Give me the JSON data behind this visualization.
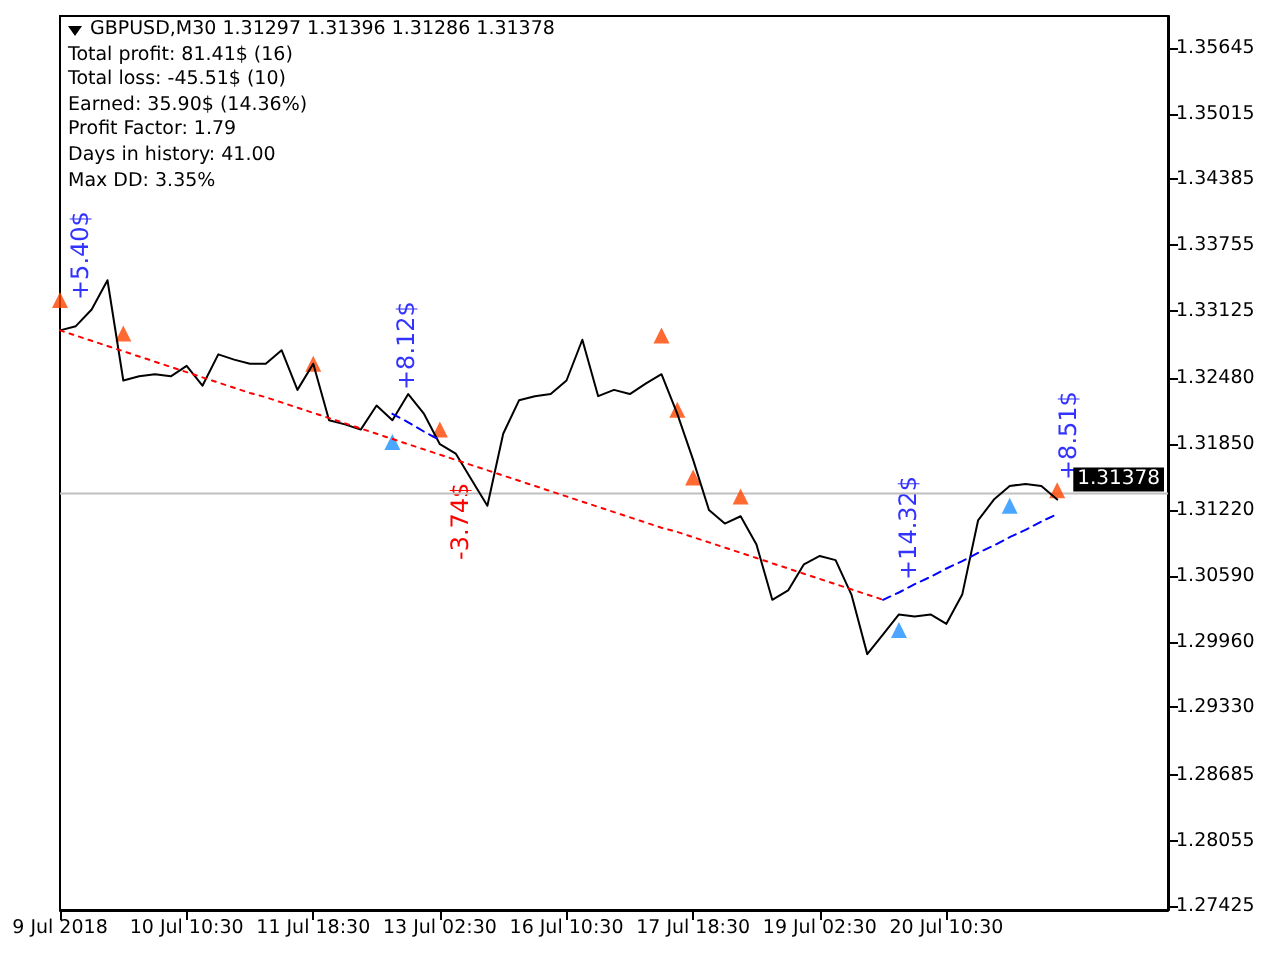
{
  "chart_data": {
    "type": "line",
    "title": "GBPUSD,M30  1.31297 1.31396 1.31286 1.31378",
    "annotations": [
      "Total profit: 81.41$ (16)",
      "Total loss: -45.51$ (10)",
      "Earned: 35.90$ (14.36%)",
      "Profit Factor: 1.79",
      "Days in history: 41.00",
      "Max DD: 3.35%",
      "+5.40$",
      "+8.12$",
      "-3.74$",
      "+14.32$",
      "+8.51$"
    ],
    "categories": [
      "9 Jul 2018",
      null,
      null,
      null,
      null,
      null,
      null,
      null,
      "10 Jul 10:30",
      null,
      null,
      null,
      null,
      null,
      null,
      null,
      "11 Jul 18:30",
      null,
      null,
      null,
      null,
      null,
      null,
      null,
      "13 Jul 02:30",
      null,
      null,
      null,
      null,
      null,
      null,
      null,
      "16 Jul 10:30",
      null,
      null,
      null,
      null,
      null,
      null,
      null,
      "17 Jul 18:30",
      null,
      null,
      null,
      null,
      null,
      null,
      null,
      "19 Jul 02:30",
      null,
      null,
      null,
      null,
      null,
      null,
      null,
      "20 Jul 10:30",
      null,
      null,
      null,
      null,
      null,
      null,
      null,
      null,
      null,
      null,
      null,
      null,
      null,
      null
    ],
    "ylim": [
      1.2739,
      1.3595
    ],
    "yticks": [
      1.35645,
      1.35015,
      1.34385,
      1.33755,
      1.33125,
      {
        "value": 1.3248,
        "label": "1.32480"
      },
      {
        "value": 1.3185,
        "label": "1.31850"
      },
      {
        "value": 1.3122,
        "label": "1.31220"
      },
      {
        "value": 1.3059,
        "label": "1.30590"
      },
      {
        "value": 1.2996,
        "label": "1.29960"
      },
      {
        "value": 1.2933,
        "label": "1.29330"
      },
      1.28685,
      1.28055,
      1.27425
    ],
    "ref_lines": [
      {
        "axis": "y",
        "value": 1.31378,
        "label": "1.31378",
        "color": "#c0c0c0"
      }
    ],
    "series": [
      {
        "color": "#000000",
        "marker": "none",
        "line_style": "solid",
        "values": [
          1.3294,
          1.3298,
          1.3314,
          1.3342,
          1.3246,
          1.325,
          1.3252,
          1.325,
          1.326,
          1.3241,
          1.3271,
          1.3266,
          1.3262,
          1.3262,
          1.3275,
          1.3237,
          1.3262,
          1.3208,
          1.3204,
          1.3199,
          1.3222,
          1.3208,
          1.3233,
          1.3214,
          1.3185,
          1.3176,
          1.3151,
          1.3126,
          1.3195,
          1.3227,
          1.3231,
          1.3233,
          1.3246,
          1.3285,
          1.3231,
          1.3237,
          1.3233,
          1.3243,
          1.3252,
          1.3214,
          1.317,
          1.3122,
          1.3109,
          1.3116,
          1.3089,
          1.3036,
          1.3045,
          1.307,
          1.3078,
          1.3074,
          1.3041,
          1.2984,
          1.3003,
          1.3022,
          1.302,
          1.3022,
          1.3013,
          1.3041,
          1.3112,
          1.3132,
          1.3145,
          1.3147,
          1.3145,
          1.3132,
          null,
          null,
          null,
          null,
          null,
          null,
          null
        ]
      },
      {
        "type": "line",
        "color": "#ff0000",
        "marker": "none",
        "line_style": "dotted",
        "values": [
          1.3294,
          1.3289,
          1.3284,
          1.3279,
          1.3274,
          1.3269,
          1.3264,
          1.3259,
          1.3254,
          1.3249,
          1.3244,
          1.3239,
          1.3234,
          1.323,
          1.3225,
          1.322,
          1.3215,
          1.321,
          1.3205,
          1.32,
          1.3195,
          1.319,
          1.3185,
          1.318,
          1.3175,
          1.317,
          1.3165,
          1.316,
          1.3155,
          1.315,
          1.3145,
          1.314,
          1.3135,
          1.313,
          1.3125,
          1.312,
          1.3115,
          1.311,
          1.3105,
          1.3101,
          1.3096,
          1.3091,
          1.3086,
          1.3081,
          1.3076,
          1.3071,
          1.3066,
          1.3061,
          1.3056,
          1.3051,
          1.3046,
          1.3041,
          1.3036,
          null,
          null,
          null,
          null,
          null,
          null,
          null,
          null,
          null,
          null,
          null,
          null,
          null,
          null,
          null,
          null,
          null,
          null
        ]
      },
      {
        "type": "line",
        "color": "#0000ff",
        "marker": "none",
        "line_style": "dashed",
        "values": [
          null,
          null,
          null,
          null,
          null,
          null,
          null,
          null,
          null,
          null,
          null,
          null,
          null,
          null,
          null,
          null,
          null,
          null,
          null,
          null,
          null,
          1.3214,
          1.3206,
          1.3197,
          1.3189,
          null,
          null,
          null,
          null,
          null,
          null,
          null,
          null,
          null,
          null,
          null,
          null,
          null,
          null,
          null,
          null,
          null,
          null,
          null,
          null,
          null,
          null,
          null,
          null,
          null,
          null,
          null,
          null,
          null,
          null,
          null,
          null,
          null,
          null,
          null,
          null,
          null,
          null,
          null,
          null,
          null,
          null,
          null,
          null,
          null,
          null
        ]
      },
      {
        "type": "line",
        "color": "#0000ff",
        "marker": "none",
        "line_style": "dashed",
        "values": [
          null,
          null,
          null,
          null,
          null,
          null,
          null,
          null,
          null,
          null,
          null,
          null,
          null,
          null,
          null,
          null,
          null,
          null,
          null,
          null,
          null,
          null,
          null,
          null,
          null,
          null,
          null,
          null,
          null,
          null,
          null,
          null,
          null,
          null,
          null,
          null,
          null,
          null,
          null,
          null,
          null,
          null,
          null,
          null,
          null,
          null,
          null,
          null,
          null,
          null,
          null,
          null,
          1.3036,
          1.3043,
          1.3051,
          1.3058,
          1.3066,
          1.3073,
          1.3081,
          1.3088,
          1.3096,
          1.3103,
          1.3111,
          1.3118,
          null,
          null,
          null,
          null,
          null,
          null,
          null
        ]
      },
      {
        "type": "scatter",
        "color": "#ff4500",
        "marker": "triangle",
        "values": [
          1.3323,
          null,
          null,
          null,
          1.3291,
          null,
          null,
          null,
          null,
          null,
          null,
          null,
          null,
          null,
          null,
          null,
          1.3262,
          null,
          null,
          null,
          null,
          null,
          null,
          null,
          1.3199,
          null,
          null,
          null,
          null,
          null,
          null,
          null,
          null,
          null,
          null,
          null,
          null,
          null,
          1.3289,
          1.3218,
          1.3153,
          null,
          null,
          1.3135,
          null,
          null,
          null,
          null,
          null,
          null,
          null,
          null,
          null,
          null,
          null,
          null,
          null,
          null,
          null,
          null,
          null,
          null,
          null,
          1.3141,
          null,
          null,
          null,
          null,
          null,
          null,
          null
        ]
      },
      {
        "type": "scatter",
        "color": "#1e90ff",
        "marker": "triangle",
        "values": [
          null,
          null,
          null,
          null,
          null,
          null,
          null,
          null,
          null,
          null,
          null,
          null,
          null,
          null,
          null,
          null,
          null,
          null,
          null,
          null,
          null,
          1.3187,
          null,
          null,
          null,
          null,
          null,
          null,
          null,
          null,
          null,
          null,
          null,
          null,
          null,
          null,
          null,
          null,
          null,
          null,
          null,
          null,
          null,
          null,
          null,
          null,
          null,
          null,
          null,
          null,
          null,
          null,
          null,
          1.3007,
          null,
          null,
          null,
          null,
          null,
          null,
          1.3126,
          null,
          null,
          null,
          null,
          null,
          null,
          null,
          null,
          null,
          null
        ]
      }
    ]
  }
}
